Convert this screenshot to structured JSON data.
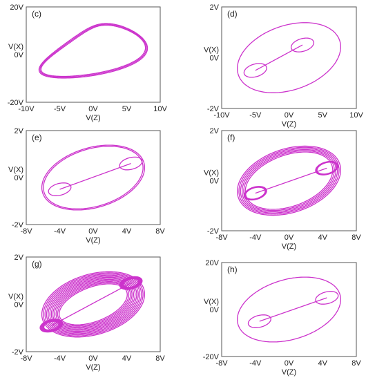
{
  "colors": {
    "trace": "#cc33cc",
    "frame": "#555555",
    "text": "#222222"
  },
  "chart_data": [
    {
      "type": "line",
      "panel_label": "(c)",
      "title": "",
      "xlabel": "V(Z)",
      "ylabel": "V(X)",
      "xlim": [
        -10,
        10
      ],
      "ylim": [
        -20,
        20
      ],
      "xticks": [
        "-10V",
        "-5V",
        "0V",
        "5V",
        "10V"
      ],
      "yticks": [
        "20V",
        "0V",
        "-20V"
      ],
      "attractor": "single-scroll",
      "scroll_centers": [
        [
          0,
          0
        ]
      ],
      "loops": 3
    },
    {
      "type": "line",
      "panel_label": "(d)",
      "title": "",
      "xlabel": "V(Z)",
      "ylabel": "V(X)",
      "xlim": [
        -10,
        10
      ],
      "ylim": [
        -2,
        2
      ],
      "xticks": [
        "-10V",
        "-5V",
        "0V",
        "5V",
        "10V"
      ],
      "yticks": [
        "2V",
        "0V",
        "-2V"
      ],
      "attractor": "double-scroll",
      "scroll_centers": [
        [
          -5,
          -0.5
        ],
        [
          2,
          0.5
        ]
      ],
      "loops": 1
    },
    {
      "type": "line",
      "panel_label": "(e)",
      "title": "",
      "xlabel": "V(Z)",
      "ylabel": "V(X)",
      "xlim": [
        -8,
        8
      ],
      "ylim": [
        -2,
        2
      ],
      "xticks": [
        "-8V",
        "-4V",
        "0V",
        "4V",
        "8V"
      ],
      "yticks": [
        "2V",
        "0V",
        "-2V"
      ],
      "attractor": "double-scroll",
      "scroll_centers": [
        [
          -4,
          -0.5
        ],
        [
          4.5,
          0.6
        ]
      ],
      "loops": 2
    },
    {
      "type": "line",
      "panel_label": "(f)",
      "title": "",
      "xlabel": "V(Z)",
      "ylabel": "V(X)",
      "xlim": [
        -8,
        8
      ],
      "ylim": [
        -2,
        2
      ],
      "xticks": [
        "-8V",
        "-4V",
        "0V",
        "4V",
        "8V"
      ],
      "yticks": [
        "2V",
        "0V",
        "-2V"
      ],
      "attractor": "double-scroll",
      "scroll_centers": [
        [
          -4,
          -0.5
        ],
        [
          4.5,
          0.5
        ]
      ],
      "loops": 6
    },
    {
      "type": "line",
      "panel_label": "(g)",
      "title": "",
      "xlabel": "V(Z)",
      "ylabel": "V(X)",
      "xlim": [
        -8,
        8
      ],
      "ylim": [
        -2,
        2
      ],
      "xticks": [
        "-8V",
        "-4V",
        "0V",
        "4V",
        "8V"
      ],
      "yticks": [
        "2V",
        "0V",
        "-2V"
      ],
      "attractor": "double-scroll",
      "scroll_centers": [
        [
          -5,
          -0.9
        ],
        [
          4.5,
          0.9
        ]
      ],
      "loops": 12
    },
    {
      "type": "line",
      "panel_label": "(h)",
      "title": "",
      "xlabel": "V(Z)",
      "ylabel": "V(X)",
      "xlim": [
        -8,
        8
      ],
      "ylim": [
        -20,
        20
      ],
      "xticks": [
        "-8V",
        "-4V",
        "0V",
        "4V",
        "8V"
      ],
      "yticks": [
        "20V",
        "0V",
        "-20V"
      ],
      "attractor": "double-scroll",
      "scroll_centers": [
        [
          -3.5,
          -5
        ],
        [
          4.5,
          5
        ]
      ],
      "loops": 1
    }
  ]
}
